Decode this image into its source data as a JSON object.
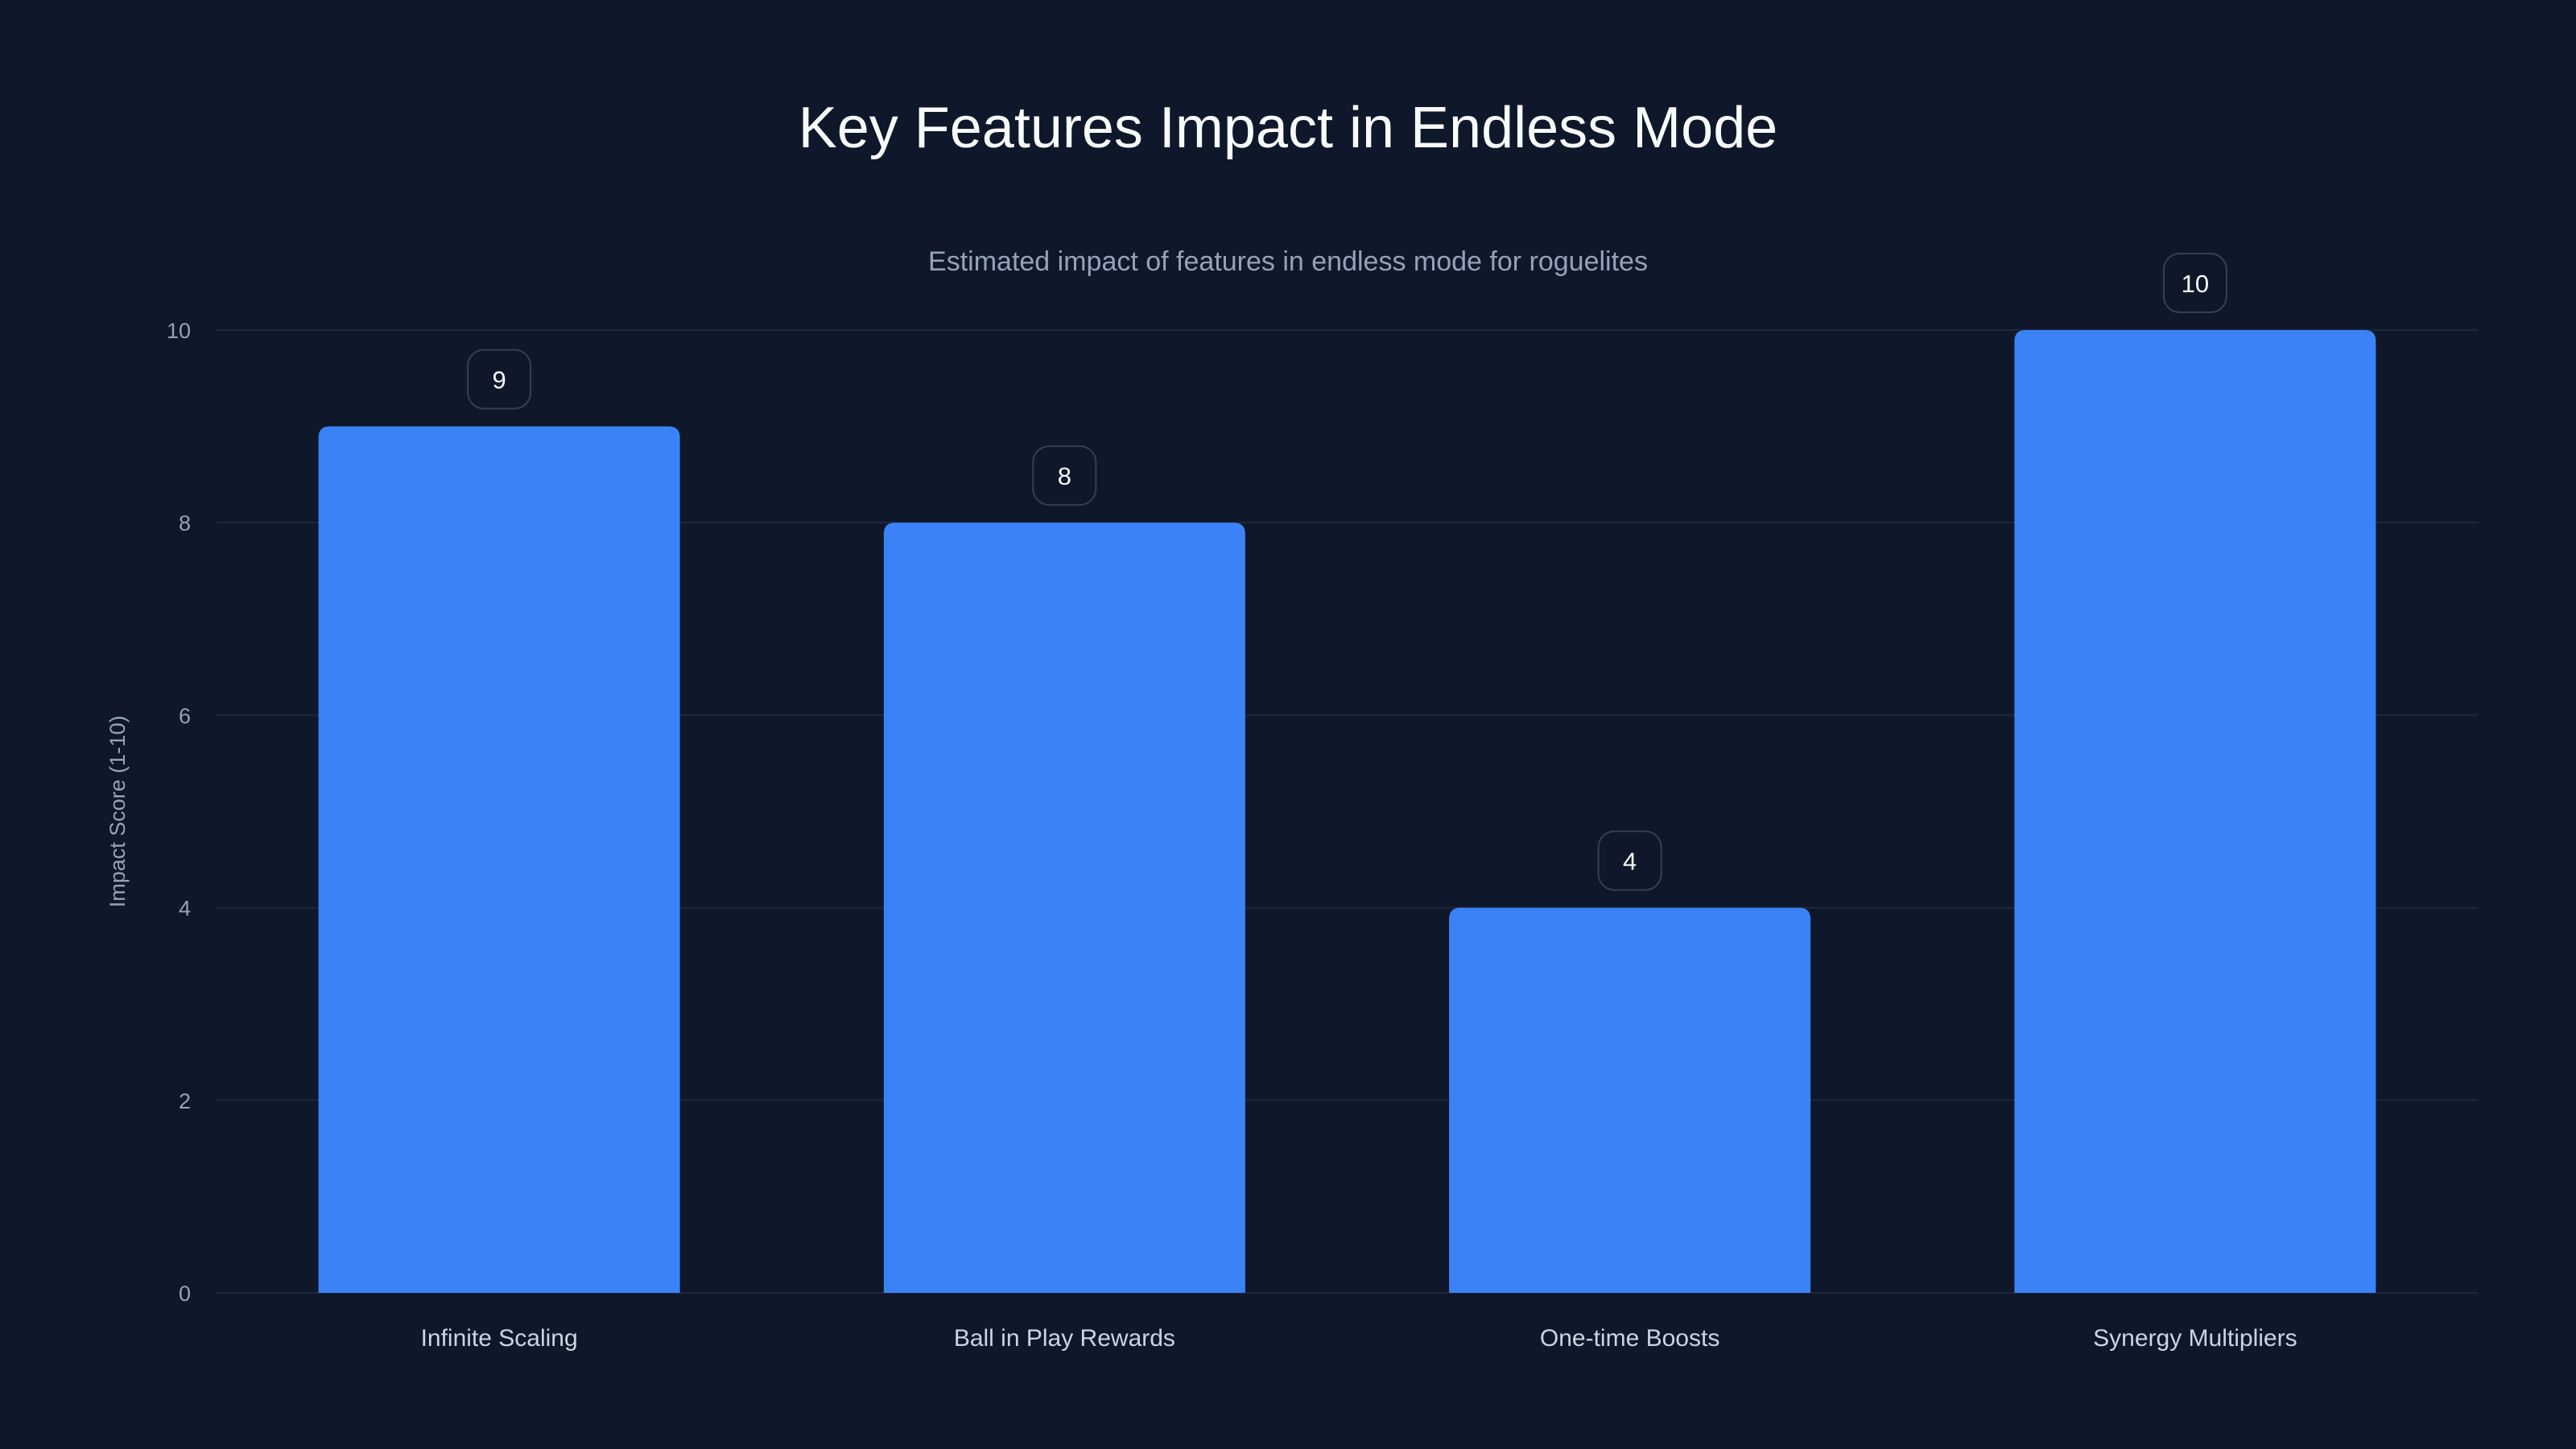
{
  "chart_data": {
    "type": "bar",
    "title": "Key Features Impact in Endless Mode",
    "subtitle": "Estimated impact of features in endless mode for roguelites",
    "categories": [
      "Infinite Scaling",
      "Ball in Play Rewards",
      "One-time Boosts",
      "Synergy Multipliers"
    ],
    "values": [
      9,
      8,
      4,
      10
    ],
    "xlabel": "",
    "ylabel": "Impact Score (1-10)",
    "ylim": [
      0,
      10
    ],
    "yticks": [
      0,
      2,
      4,
      6,
      8,
      10
    ],
    "grid": true,
    "colors": {
      "bar": "#3b82f6",
      "background": "#0f172a",
      "grid": "#1e293b",
      "tick": "#94a3b8",
      "label": "#cbd5e1",
      "badge_border": "#334155"
    }
  }
}
